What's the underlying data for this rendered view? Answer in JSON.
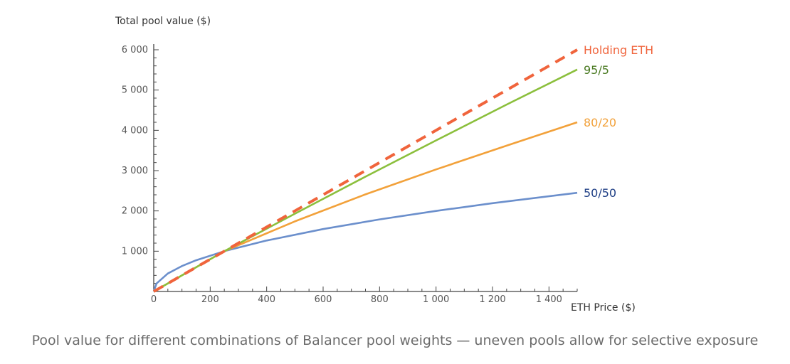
{
  "caption": "Pool value for different combinations of Balancer pool weights — uneven pools allow for selective exposure",
  "chart_data": {
    "type": "line",
    "title": "",
    "ylabel": "Total pool value ($)",
    "xlabel": "ETH Price ($)",
    "xlim": [
      0,
      1500
    ],
    "ylim": [
      0,
      6000
    ],
    "x_ticks": [
      0,
      200,
      400,
      600,
      800,
      1000,
      1200,
      1400
    ],
    "x_tick_labels": [
      "0",
      "200",
      "400",
      "600",
      "800",
      "1 000",
      "1 200",
      "1 400"
    ],
    "y_ticks": [
      1000,
      2000,
      3000,
      4000,
      5000,
      6000
    ],
    "y_tick_labels": [
      "1 000",
      "2 000",
      "3 000",
      "4 000",
      "5 000",
      "6 000"
    ],
    "series": [
      {
        "name": "Holding ETH",
        "color": "#f0643c",
        "dashed": true,
        "x": [
          0,
          250,
          500,
          750,
          1000,
          1250,
          1500
        ],
        "y": [
          0,
          1000,
          2000,
          3000,
          4000,
          5000,
          6000
        ]
      },
      {
        "name": "95/5",
        "color": "#8bbf3c",
        "dashed": false,
        "x": [
          0,
          250,
          500,
          750,
          1000,
          1250,
          1500
        ],
        "y": [
          0,
          1000,
          1930,
          2850,
          3750,
          4640,
          5510
        ]
      },
      {
        "name": "80/20",
        "color": "#f2a13a",
        "dashed": false,
        "x": [
          0,
          250,
          500,
          750,
          1000,
          1250,
          1500
        ],
        "y": [
          0,
          1000,
          1740,
          2410,
          3030,
          3620,
          4200
        ]
      },
      {
        "name": "50/50",
        "color": "#6b8fcc",
        "dashed": false,
        "x": [
          0,
          10,
          50,
          100,
          150,
          250,
          400,
          600,
          800,
          1000,
          1200,
          1500
        ],
        "y": [
          0,
          200,
          447,
          632,
          775,
          1000,
          1265,
          1549,
          1789,
          2000,
          2191,
          2449
        ]
      }
    ],
    "series_label_colors": {
      "Holding ETH": "#f0643c",
      "95/5": "#4a7a22",
      "80/20": "#f2a13a",
      "50/50": "#1f3f85"
    },
    "grid": false
  }
}
